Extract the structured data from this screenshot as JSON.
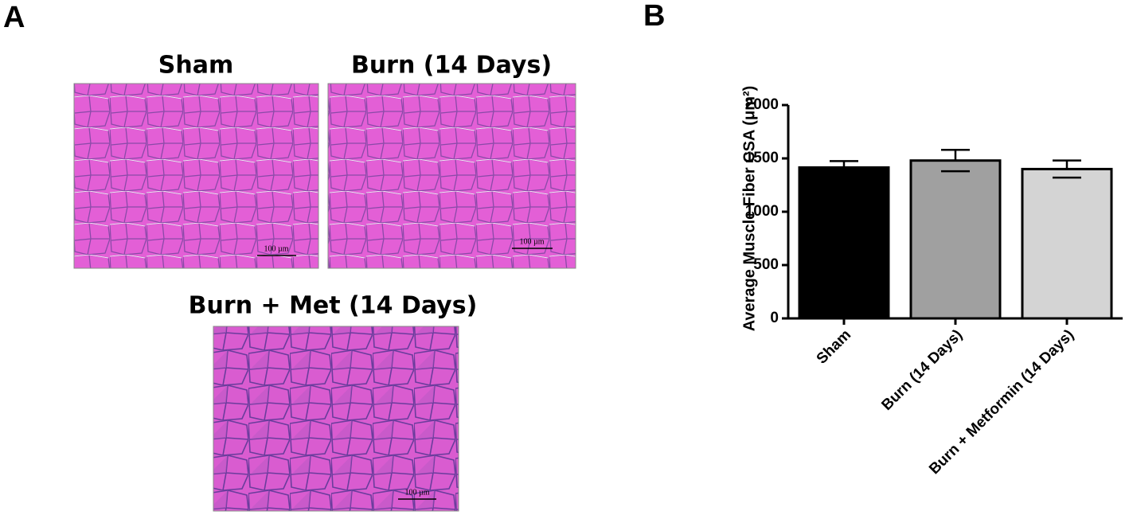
{
  "panel_a": {
    "label": "A",
    "images": [
      {
        "title": "Sham",
        "scale_bar": "100 µm"
      },
      {
        "title": "Burn (14 Days)",
        "scale_bar": "100 µm"
      },
      {
        "title": "Burn + Met (14 Days)",
        "scale_bar": "100 µm"
      }
    ]
  },
  "panel_b": {
    "label": "B"
  },
  "chart_data": {
    "type": "bar",
    "y_label": "Average Muscle Fiber CSA (μm²)",
    "categories": [
      "Sham",
      "Burn (14 Days)",
      "Burn + Metformin (14 Days)"
    ],
    "values": [
      1415,
      1480,
      1400
    ],
    "errors": [
      60,
      100,
      80
    ],
    "colors": [
      "#000000",
      "#a0a0a0",
      "#d4d4d4"
    ],
    "ylim": [
      0,
      2000
    ],
    "yticks": [
      0,
      500,
      1000,
      1500,
      2000
    ],
    "grid": false
  }
}
